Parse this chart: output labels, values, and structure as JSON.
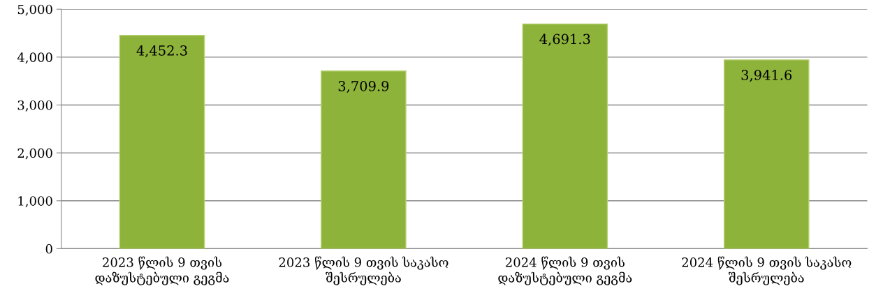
{
  "chart_data": {
    "type": "bar",
    "categories": [
      "2023 წლის 9 თვის\nდაზუსტებული გეგმა",
      "2023 წლის 9 თვის საკასო\nშესრულება",
      "2024 წლის 9 თვის\nდაზუსტებული გეგმა",
      "2024 წლის 9 თვის საკასო\nშესრულება"
    ],
    "values": [
      4452.3,
      3709.9,
      4691.3,
      3941.6
    ],
    "color": "#8db33a",
    "value_labels": [
      "4,452.3",
      "3,709.9",
      "4,691.3",
      "3,941.6"
    ],
    "ylim": [
      0,
      5000
    ],
    "yticks": [
      {
        "value": 0,
        "label": "0"
      },
      {
        "value": 1000,
        "label": "1,000"
      },
      {
        "value": 2000,
        "label": "2,000"
      },
      {
        "value": 3000,
        "label": "3,000"
      },
      {
        "value": 4000,
        "label": "4,000"
      },
      {
        "value": 5000,
        "label": "5,000"
      }
    ],
    "grid": "y",
    "legend": false
  }
}
